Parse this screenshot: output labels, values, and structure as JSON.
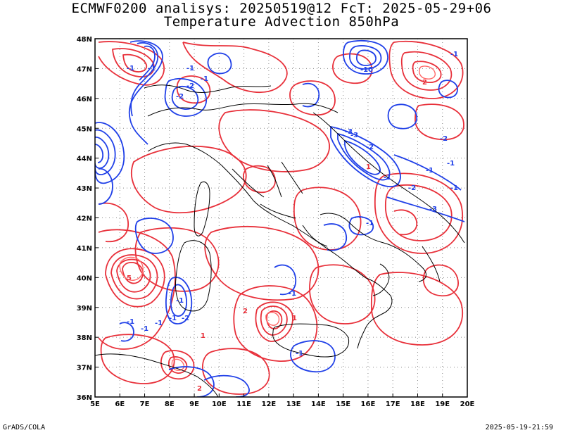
{
  "title_line1": "ECMWF0200 analisys: 20250519@12 FcT: 2025-05-29+06",
  "title_line2": "Temperature Advection 850hPa",
  "footer_left": "GrADS/COLA",
  "footer_right": "2025-05-19-21:59",
  "lon_ticks": [
    "5E",
    "6E",
    "7E",
    "8E",
    "9E",
    "10E",
    "11E",
    "12E",
    "13E",
    "14E",
    "15E",
    "16E",
    "17E",
    "18E",
    "19E",
    "20E"
  ],
  "lat_ticks": [
    "48N",
    "47N",
    "46N",
    "45N",
    "44N",
    "43N",
    "42N",
    "41N",
    "40N",
    "39N",
    "38N",
    "37N",
    "36N"
  ],
  "colors": {
    "warm": "#e8303a",
    "warm_light": "#ff6a6a",
    "cold": "#2040e8",
    "coast": "#000000",
    "grid": "#888888"
  },
  "contour_labels": [
    "-1",
    "-1",
    "-2",
    "-2",
    "-1",
    "-3",
    "-1",
    "-10",
    "-2",
    "-3",
    "-1",
    "2",
    "-1",
    "1",
    "-1",
    "-2",
    "-1",
    "-2",
    "-1",
    "-1",
    "-1",
    "-1",
    "2",
    "-1",
    "5",
    "-1",
    "-3",
    "1",
    "-2",
    "2",
    "-1",
    "1",
    "-1",
    "-1"
  ]
}
